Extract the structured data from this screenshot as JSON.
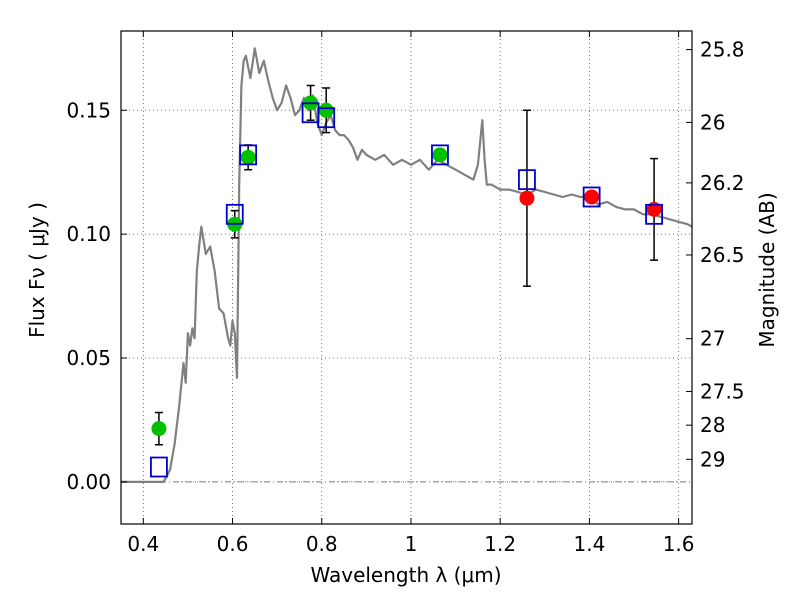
{
  "chart_data": {
    "type": "scatter",
    "xlabel": "Wavelength  λ (μm)",
    "ylabel": "Flux  Fν  ( μJy )",
    "y2label": "Magnitude (AB)",
    "xlim": [
      0.35,
      1.63
    ],
    "ylim": [
      -0.017,
      0.182
    ],
    "grid": true,
    "xticks": [
      0.4,
      0.6,
      0.8,
      1.0,
      1.2,
      1.4,
      1.6
    ],
    "xtick_labels": [
      "0.4",
      "0.6",
      "0.8",
      "1",
      "1.2",
      "1.4",
      "1.6"
    ],
    "yticks": [
      0.0,
      0.05,
      0.1,
      0.15
    ],
    "ytick_labels": [
      "0.00",
      "0.05",
      "0.10",
      "0.15"
    ],
    "y2ticks": [
      {
        "label": "25.8",
        "flux": 0.1745
      },
      {
        "label": "26",
        "flux": 0.1451
      },
      {
        "label": "26.2",
        "flux": 0.1207
      },
      {
        "label": "26.5",
        "flux": 0.0916
      },
      {
        "label": "27",
        "flux": 0.0578
      },
      {
        "label": "27.5",
        "flux": 0.0365
      },
      {
        "label": "28",
        "flux": 0.0229
      },
      {
        "label": "29",
        "flux": 0.0091
      }
    ],
    "reference_line": {
      "y": 0.0,
      "style": "dash-dot"
    },
    "series": [
      {
        "kind": "line",
        "color": "#808080",
        "x": [
          0.35,
          0.38,
          0.4,
          0.42,
          0.445,
          0.452,
          0.46,
          0.47,
          0.48,
          0.49,
          0.495,
          0.5,
          0.505,
          0.51,
          0.515,
          0.52,
          0.525,
          0.53,
          0.54,
          0.55,
          0.56,
          0.57,
          0.58,
          0.59,
          0.595,
          0.6,
          0.605,
          0.61,
          0.615,
          0.62,
          0.625,
          0.63,
          0.64,
          0.65,
          0.66,
          0.67,
          0.68,
          0.69,
          0.7,
          0.71,
          0.72,
          0.73,
          0.74,
          0.75,
          0.76,
          0.77,
          0.78,
          0.79,
          0.8,
          0.81,
          0.82,
          0.83,
          0.84,
          0.85,
          0.86,
          0.87,
          0.88,
          0.89,
          0.9,
          0.92,
          0.94,
          0.96,
          0.98,
          1.0,
          1.02,
          1.04,
          1.06,
          1.08,
          1.1,
          1.12,
          1.14,
          1.15,
          1.16,
          1.165,
          1.17,
          1.18,
          1.2,
          1.22,
          1.24,
          1.26,
          1.28,
          1.3,
          1.32,
          1.34,
          1.36,
          1.38,
          1.4,
          1.42,
          1.44,
          1.46,
          1.48,
          1.5,
          1.52,
          1.54,
          1.56,
          1.58,
          1.6,
          1.62,
          1.63
        ],
        "y": [
          0.0,
          0.0,
          0.0,
          0.0,
          0.0,
          0.002,
          0.005,
          0.015,
          0.03,
          0.048,
          0.04,
          0.06,
          0.055,
          0.062,
          0.058,
          0.085,
          0.095,
          0.103,
          0.092,
          0.095,
          0.085,
          0.07,
          0.068,
          0.058,
          0.055,
          0.065,
          0.06,
          0.042,
          0.12,
          0.16,
          0.17,
          0.172,
          0.163,
          0.175,
          0.165,
          0.17,
          0.162,
          0.155,
          0.15,
          0.153,
          0.16,
          0.155,
          0.148,
          0.15,
          0.155,
          0.15,
          0.156,
          0.145,
          0.14,
          0.145,
          0.148,
          0.142,
          0.14,
          0.14,
          0.138,
          0.135,
          0.13,
          0.134,
          0.132,
          0.13,
          0.132,
          0.128,
          0.13,
          0.128,
          0.13,
          0.126,
          0.13,
          0.128,
          0.126,
          0.124,
          0.122,
          0.128,
          0.146,
          0.13,
          0.12,
          0.12,
          0.118,
          0.118,
          0.117,
          0.116,
          0.118,
          0.117,
          0.116,
          0.115,
          0.116,
          0.115,
          0.115,
          0.112,
          0.113,
          0.111,
          0.11,
          0.11,
          0.108,
          0.108,
          0.107,
          0.106,
          0.105,
          0.104,
          0.103
        ]
      },
      {
        "kind": "markers",
        "marker": "circle",
        "color": "#00c000",
        "x": [
          0.435,
          0.605,
          0.635,
          0.775,
          0.81,
          1.065
        ],
        "y": [
          0.0215,
          0.104,
          0.131,
          0.153,
          0.15,
          0.132
        ],
        "yerr": [
          0.0065,
          0.0055,
          0.005,
          0.007,
          0.009,
          0.0
        ]
      },
      {
        "kind": "markers",
        "marker": "circle",
        "color": "#ff0000",
        "x": [
          1.26,
          1.405,
          1.545
        ],
        "y": [
          0.1145,
          0.115,
          0.11
        ],
        "yerr": [
          0.0355,
          0.0,
          0.0205
        ]
      },
      {
        "kind": "markers",
        "marker": "square",
        "color": "#0000cc",
        "x": [
          0.435,
          0.605,
          0.635,
          0.775,
          0.81,
          1.065,
          1.26,
          1.405,
          1.545
        ],
        "y": [
          0.006,
          0.108,
          0.132,
          0.149,
          0.147,
          0.132,
          0.122,
          0.115,
          0.108
        ]
      }
    ]
  }
}
